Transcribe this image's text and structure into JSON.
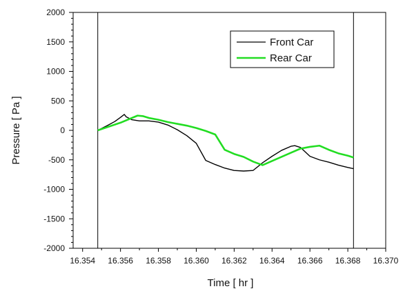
{
  "chart_data": {
    "type": "line",
    "title": "",
    "xlabel": "Time [ hr ]",
    "ylabel": "Pressure [ Pa ]",
    "xlim": [
      16.3535,
      16.37
    ],
    "ylim": [
      -2000,
      2000
    ],
    "x_ticks": [
      16.354,
      16.356,
      16.358,
      16.36,
      16.362,
      16.364,
      16.366,
      16.368,
      16.37
    ],
    "x_tick_labels": [
      "16.354",
      "16.356",
      "16.358",
      "16.360",
      "16.362",
      "16.364",
      "16.366",
      "16.368",
      "16.370"
    ],
    "y_ticks": [
      -2000,
      -1500,
      -1000,
      -500,
      0,
      500,
      1000,
      1500,
      2000
    ],
    "y_tick_labels": [
      "-2000",
      "-1500",
      "-1000",
      "-500",
      "0",
      "500",
      "1000",
      "1500",
      "2000"
    ],
    "grid": false,
    "legend_position": "top-right",
    "vertical_lines": [
      16.3548,
      16.3683
    ],
    "series": [
      {
        "name": "Front Car",
        "color": "#000000",
        "x": [
          16.3548,
          16.3553,
          16.3557,
          16.356,
          16.3562,
          16.3563,
          16.3566,
          16.357,
          16.3575,
          16.358,
          16.3585,
          16.359,
          16.3595,
          16.36,
          16.3605,
          16.361,
          16.3615,
          16.362,
          16.3625,
          16.363,
          16.3635,
          16.364,
          16.3645,
          16.365,
          16.3652,
          16.3655,
          16.366,
          16.3665,
          16.367,
          16.3675,
          16.368,
          16.3683
        ],
        "y": [
          0,
          80,
          150,
          220,
          270,
          230,
          180,
          160,
          160,
          140,
          90,
          10,
          -90,
          -220,
          -510,
          -580,
          -640,
          -680,
          -690,
          -680,
          -550,
          -440,
          -340,
          -270,
          -260,
          -290,
          -440,
          -500,
          -540,
          -590,
          -630,
          -650
        ]
      },
      {
        "name": "Rear Car",
        "color": "#22dd22",
        "x": [
          16.3548,
          16.356,
          16.3569,
          16.3572,
          16.3575,
          16.358,
          16.3585,
          16.359,
          16.3595,
          16.36,
          16.3605,
          16.361,
          16.3615,
          16.362,
          16.3625,
          16.363,
          16.3635,
          16.364,
          16.3645,
          16.365,
          16.3655,
          16.366,
          16.3665,
          16.367,
          16.3675,
          16.368,
          16.3683
        ],
        "y": [
          0,
          130,
          250,
          240,
          210,
          180,
          140,
          110,
          80,
          40,
          -10,
          -70,
          -330,
          -400,
          -450,
          -530,
          -590,
          -520,
          -450,
          -380,
          -310,
          -280,
          -260,
          -330,
          -390,
          -430,
          -460
        ]
      }
    ]
  }
}
